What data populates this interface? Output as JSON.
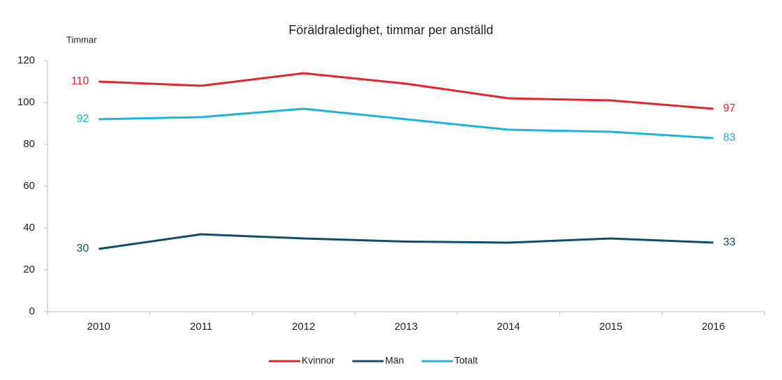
{
  "chart_data": {
    "type": "line",
    "title": "Föräldraledighet, timmar per anställd",
    "y_label": "Timmar",
    "categories": [
      "2010",
      "2011",
      "2012",
      "2013",
      "2014",
      "2015",
      "2016"
    ],
    "series": [
      {
        "name": "Kvinnor",
        "color": "#e0262b",
        "values": [
          110,
          108,
          114,
          109,
          102,
          101,
          97
        ],
        "value_labels": [
          "110",
          null,
          null,
          null,
          null,
          null,
          "97"
        ]
      },
      {
        "name": "Män",
        "color": "#0f4d6b",
        "values": [
          30,
          37,
          35,
          33.5,
          33,
          35,
          33
        ],
        "value_labels": [
          "30",
          null,
          null,
          null,
          null,
          null,
          "33"
        ]
      },
      {
        "name": "Totalt",
        "color": "#1eb2e0",
        "values": [
          92,
          93,
          97,
          92,
          87,
          86,
          83
        ],
        "value_labels": [
          "92",
          null,
          null,
          null,
          null,
          null,
          "83"
        ]
      }
    ],
    "ylim": [
      0,
      120
    ],
    "yticks": [
      0,
      20,
      40,
      60,
      80,
      100,
      120
    ],
    "grid": false,
    "legend": "bottom"
  }
}
